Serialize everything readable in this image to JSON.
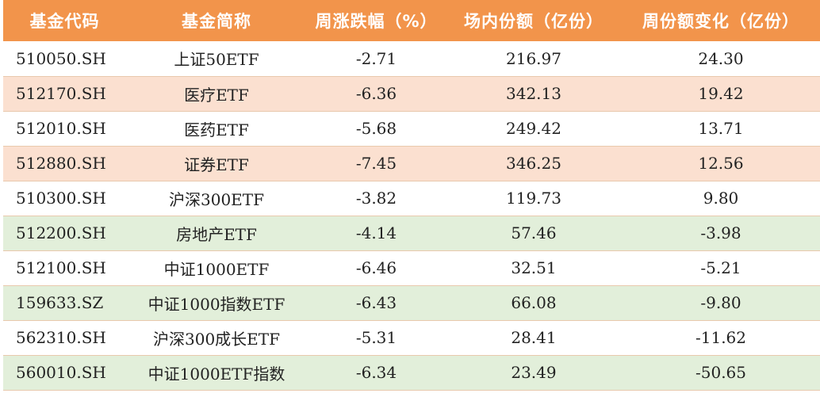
{
  "headers": [
    "基金代码",
    "基金简称",
    "周涨跌幅（%）",
    "场内份额（亿份）",
    "周份额变化（亿份）"
  ],
  "rows": [
    {
      "code": "510050.SH",
      "name": "上证50ETF",
      "weekly_change": "-2.71",
      "shares": "216.97",
      "share_change": "24.30",
      "highlight": "white"
    },
    {
      "code": "512170.SH",
      "name": "医疗ETF",
      "weekly_change": "-6.36",
      "shares": "342.13",
      "share_change": "19.42",
      "highlight": "peach"
    },
    {
      "code": "512010.SH",
      "name": "医药ETF",
      "weekly_change": "-5.68",
      "shares": "249.42",
      "share_change": "13.71",
      "highlight": "white"
    },
    {
      "code": "512880.SH",
      "name": "证券ETF",
      "weekly_change": "-7.45",
      "shares": "346.25",
      "share_change": "12.56",
      "highlight": "peach"
    },
    {
      "code": "510300.SH",
      "name": "沪深300ETF",
      "weekly_change": "-3.82",
      "shares": "119.73",
      "share_change": "9.80",
      "highlight": "white"
    },
    {
      "code": "512200.SH",
      "name": "房地产ETF",
      "weekly_change": "-4.14",
      "shares": "57.46",
      "share_change": "-3.98",
      "highlight": "green"
    },
    {
      "code": "512100.SH",
      "name": "中证1000ETF",
      "weekly_change": "-6.46",
      "shares": "32.51",
      "share_change": "-5.21",
      "highlight": "white"
    },
    {
      "code": "159633.SZ",
      "name": "中证1000指数ETF",
      "weekly_change": "-6.43",
      "shares": "66.08",
      "share_change": "-9.80",
      "highlight": "green"
    },
    {
      "code": "562310.SH",
      "name": "沪深300成长ETF",
      "weekly_change": "-5.31",
      "shares": "28.41",
      "share_change": "-11.62",
      "highlight": "white"
    },
    {
      "code": "560010.SH",
      "name": "中证1000ETF指数",
      "weekly_change": "-6.34",
      "shares": "23.49",
      "share_change": "-50.65",
      "highlight": "green"
    }
  ],
  "colors": {
    "header_bg": "#f2944b",
    "peach_row": "#fbe0d0",
    "green_row": "#e2efda"
  }
}
